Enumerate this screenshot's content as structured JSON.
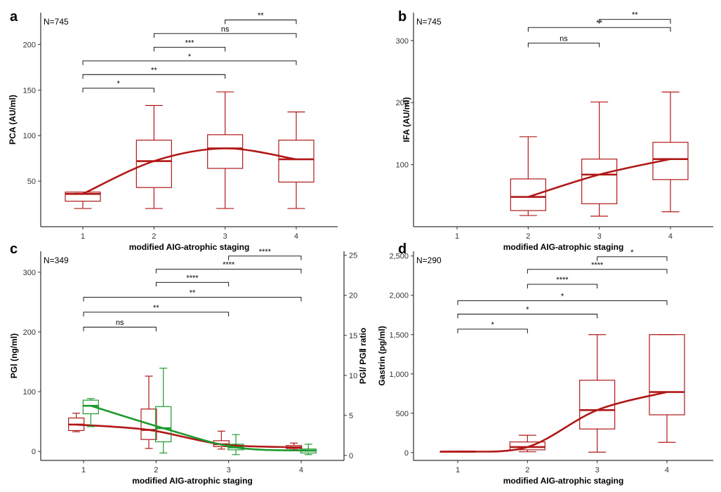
{
  "chart_data": [
    {
      "type": "boxplot",
      "panel_label": "a",
      "annotation": "N=745",
      "xlabel": "modified AIG-atrophic staging",
      "ylabel": "PCA (AU/ml)",
      "categories": [
        "1",
        "2",
        "3",
        "4"
      ],
      "ylim": [
        0,
        235
      ],
      "yticks": [
        50,
        100,
        150,
        200
      ],
      "ytick_labels": [
        "50",
        "100",
        "150",
        "200"
      ],
      "color": "#b01818",
      "boxes": [
        {
          "x": 1,
          "min": 20,
          "q1": 28,
          "median": 36,
          "q3": 38,
          "max": 38
        },
        {
          "x": 2,
          "min": 20,
          "q1": 43,
          "median": 72,
          "q3": 95,
          "max": 133
        },
        {
          "x": 3,
          "min": 20,
          "q1": 64,
          "median": 86,
          "q3": 101,
          "max": 148
        },
        {
          "x": 4,
          "min": 20,
          "q1": 49,
          "median": 74,
          "q3": 95,
          "max": 126
        }
      ],
      "trend": [
        [
          1,
          36
        ],
        [
          2,
          72
        ],
        [
          3,
          86
        ],
        [
          4,
          74
        ]
      ],
      "significance": [
        {
          "from": 3,
          "to": 4,
          "y": 227,
          "label": "**"
        },
        {
          "from": 2,
          "to": 4,
          "y": 212,
          "label": "ns"
        },
        {
          "from": 2,
          "to": 3,
          "y": 197,
          "label": "***"
        },
        {
          "from": 1,
          "to": 4,
          "y": 182,
          "label": "*"
        },
        {
          "from": 1,
          "to": 3,
          "y": 167,
          "label": "**"
        },
        {
          "from": 1,
          "to": 2,
          "y": 152,
          "label": "*"
        }
      ]
    },
    {
      "type": "boxplot",
      "panel_label": "b",
      "annotation": "N=745",
      "xlabel": "modified AIG-atrophic staging",
      "ylabel": "IFA (AU/ml)",
      "categories": [
        "1",
        "2",
        "3",
        "4"
      ],
      "ylim": [
        0,
        345
      ],
      "yticks": [
        100,
        200,
        300
      ],
      "ytick_labels": [
        "100",
        "200",
        "300"
      ],
      "color": "#b01818",
      "boxes": [
        {
          "x": 2,
          "min": 18,
          "q1": 26,
          "median": 48,
          "q3": 77,
          "max": 145
        },
        {
          "x": 3,
          "min": 17,
          "q1": 37,
          "median": 84,
          "q3": 109,
          "max": 201
        },
        {
          "x": 4,
          "min": 24,
          "q1": 76,
          "median": 109,
          "q3": 136,
          "max": 217
        }
      ],
      "trend": [
        [
          2,
          48
        ],
        [
          3,
          84
        ],
        [
          4,
          109
        ]
      ],
      "significance": [
        {
          "from": 3,
          "to": 4,
          "y": 334,
          "label": "**"
        },
        {
          "from": 2,
          "to": 4,
          "y": 321,
          "label": "**"
        },
        {
          "from": 2,
          "to": 3,
          "y": 296,
          "label": "ns"
        }
      ]
    },
    {
      "type": "boxplot",
      "panel_label": "c",
      "annotation": "N=349",
      "xlabel": "modified AIG-atrophic staging",
      "ylabel": "PGⅠ (ng/ml)",
      "y2label": "PGⅠ/ PGⅡ ratio",
      "categories": [
        "1",
        "2",
        "3",
        "4"
      ],
      "ylim": [
        -15,
        335
      ],
      "yticks": [
        0,
        100,
        200,
        300
      ],
      "ytick_labels": [
        "0",
        "100",
        "200",
        "300"
      ],
      "y2lim": [
        -0.625,
        25.5
      ],
      "y2ticks": [
        0,
        5,
        10,
        15,
        20,
        25
      ],
      "y2tick_labels": [
        "0",
        "5",
        "10",
        "15",
        "20",
        "25"
      ],
      "series": [
        {
          "axis": "left",
          "color": "#b01818",
          "offset": -0.1,
          "boxes": [
            {
              "x": 1,
              "min": 33,
              "q1": 35,
              "median": 45,
              "q3": 56,
              "max": 64
            },
            {
              "x": 2,
              "min": 5,
              "q1": 20,
              "median": 36,
              "q3": 71,
              "max": 126
            },
            {
              "x": 3,
              "min": 4,
              "q1": 8,
              "median": 12,
              "q3": 18,
              "max": 34
            },
            {
              "x": 4,
              "min": 3,
              "q1": 5,
              "median": 7,
              "q3": 10,
              "max": 14
            }
          ],
          "trend": [
            [
              1,
              45
            ],
            [
              2,
              36
            ],
            [
              3,
              12
            ],
            [
              4,
              7
            ]
          ]
        },
        {
          "axis": "right",
          "color": "#1e9a2e",
          "offset": 0.1,
          "boxes": [
            {
              "x": 1,
              "min": 3.6,
              "q1": 5.2,
              "median": 6.2,
              "q3": 6.9,
              "max": 7.1
            },
            {
              "x": 2,
              "min": 0.3,
              "q1": 1.7,
              "median": 3.4,
              "q3": 6.1,
              "max": 10.9
            },
            {
              "x": 3,
              "min": 0.1,
              "q1": 0.7,
              "median": 1.0,
              "q3": 1.4,
              "max": 2.6
            },
            {
              "x": 4,
              "min": 0.1,
              "q1": 0.3,
              "median": 0.6,
              "q3": 0.8,
              "max": 1.4
            }
          ],
          "trend": [
            [
              1,
              6.2
            ],
            [
              2,
              3.4
            ],
            [
              3,
              1.0
            ],
            [
              4,
              0.6
            ]
          ]
        }
      ],
      "significance": [
        {
          "from": 3,
          "to": 4,
          "y": 327,
          "label": "****"
        },
        {
          "from": 2,
          "to": 4,
          "y": 305,
          "label": "****"
        },
        {
          "from": 2,
          "to": 3,
          "y": 283,
          "label": "****"
        },
        {
          "from": 1,
          "to": 4,
          "y": 258,
          "label": "**"
        },
        {
          "from": 1,
          "to": 3,
          "y": 233,
          "label": "**"
        },
        {
          "from": 1,
          "to": 2,
          "y": 208,
          "label": "ns"
        }
      ]
    },
    {
      "type": "boxplot",
      "panel_label": "d",
      "annotation": "N=290",
      "xlabel": "modified AIG-atrophic staging",
      "ylabel": "Gastrin (pg/ml)",
      "categories": [
        "1",
        "2",
        "3",
        "4"
      ],
      "ylim": [
        -100,
        2560
      ],
      "yticks": [
        0,
        500,
        1000,
        1500,
        2000,
        2500
      ],
      "ytick_labels": [
        "0",
        "500",
        "1,000",
        "1,500",
        "2,000",
        "2,500"
      ],
      "color": "#b01818",
      "boxes": [
        {
          "x": 1,
          "min": 8,
          "q1": 10,
          "median": 12,
          "q3": 14,
          "max": 16
        },
        {
          "x": 2,
          "min": 10,
          "q1": 35,
          "median": 70,
          "q3": 135,
          "max": 220
        },
        {
          "x": 3,
          "min": 5,
          "q1": 300,
          "median": 540,
          "q3": 920,
          "max": 1500
        },
        {
          "x": 4,
          "min": 130,
          "q1": 480,
          "median": 770,
          "q3": 1500,
          "max": 1500
        }
      ],
      "trend": [
        [
          1,
          12
        ],
        [
          2,
          70
        ],
        [
          3,
          540
        ],
        [
          4,
          770
        ]
      ],
      "significance": [
        {
          "from": 3,
          "to": 4,
          "y": 2490,
          "label": "*"
        },
        {
          "from": 2,
          "to": 4,
          "y": 2330,
          "label": "****"
        },
        {
          "from": 2,
          "to": 3,
          "y": 2140,
          "label": "****"
        },
        {
          "from": 1,
          "to": 4,
          "y": 1930,
          "label": "*"
        },
        {
          "from": 1,
          "to": 3,
          "y": 1760,
          "label": "*"
        },
        {
          "from": 1,
          "to": 2,
          "y": 1570,
          "label": "*"
        }
      ]
    }
  ]
}
